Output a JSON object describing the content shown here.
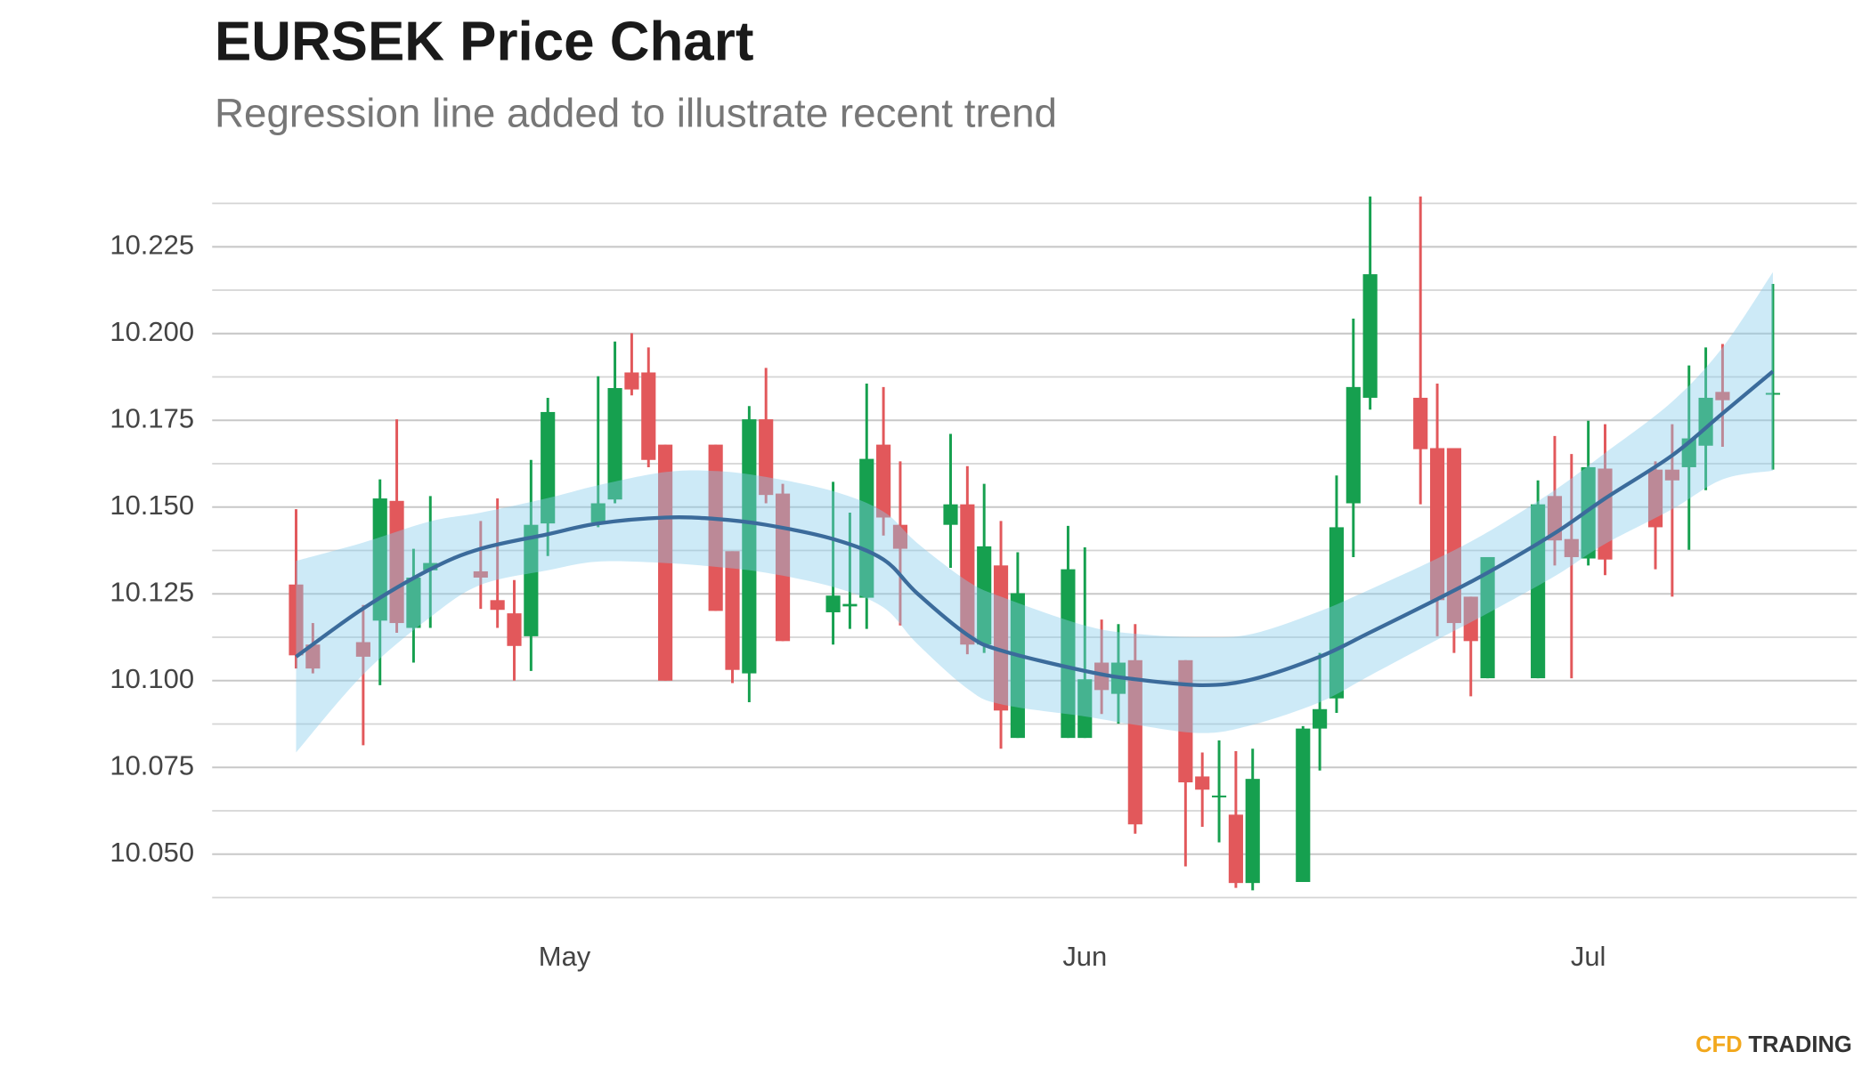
{
  "chart_data": {
    "type": "candlestick",
    "title": "EURSEK Price Chart",
    "subtitle": "Regression line added to illustrate recent trend",
    "logo": {
      "part1": "CFD",
      "part2": "TRADING"
    },
    "xlim": [
      -21,
      77
    ],
    "xticks": [
      {
        "value": 0,
        "label": "May"
      },
      {
        "value": 31,
        "label": "Jun"
      },
      {
        "value": 61,
        "label": "Jul"
      }
    ],
    "ylim": [
      10.0375,
      10.2425
    ],
    "yticks": [
      {
        "value": 10.05,
        "label": "10.050"
      },
      10.075,
      {
        "value": 10.1,
        "label": "10.100"
      },
      10.125,
      {
        "value": 10.15,
        "label": "10.150"
      },
      10.175,
      {
        "value": 10.2,
        "label": "10.200"
      },
      10.225
    ],
    "yminor": [
      10.0375,
      10.0625,
      10.0875,
      10.1125,
      10.1375,
      10.1625,
      10.1875,
      10.2125,
      10.2375
    ],
    "grid": true,
    "up_color": "#16a04f",
    "down_color": "#e2585b",
    "x": [
      -16,
      -15,
      -12,
      -11,
      -10,
      -9,
      -8,
      -5,
      -4,
      -3,
      -2,
      -1,
      2,
      3,
      4,
      5,
      6,
      9,
      10,
      11,
      12,
      13,
      16,
      17,
      18,
      19,
      20,
      23,
      24,
      25,
      26,
      27,
      30,
      31,
      32,
      33,
      34,
      37,
      38,
      39,
      40,
      41,
      44,
      45,
      46,
      47,
      48,
      51,
      52,
      53,
      54,
      55,
      58,
      59,
      60,
      61,
      62,
      65,
      66,
      67,
      68,
      69,
      72
    ],
    "open": [
      10.1277,
      10.1104,
      10.1111,
      10.1173,
      10.1518,
      10.1152,
      10.1318,
      10.1315,
      10.1232,
      10.1194,
      10.1128,
      10.1453,
      10.1456,
      10.1522,
      10.1888,
      10.1888,
      10.168,
      10.168,
      10.1373,
      10.1021,
      10.1753,
      10.1539,
      10.1197,
      10.1214,
      10.1239,
      10.168,
      10.1449,
      10.1449,
      10.1508,
      10.1104,
      10.1332,
      10.0835,
      10.0835,
      10.0835,
      10.1052,
      10.0962,
      10.1059,
      10.1059,
      10.0724,
      10.0666,
      10.0614,
      10.0417,
      10.042,
      10.0862,
      10.0949,
      10.1511,
      10.1815,
      10.1815,
      10.167,
      10.167,
      10.1242,
      10.1007,
      10.1007,
      10.1532,
      10.1408,
      10.1352,
      10.1611,
      10.1608,
      10.1608,
      10.1615,
      10.1677,
      10.1832,
      10.1829
    ],
    "high": [
      10.1494,
      10.1166,
      10.1218,
      10.158,
      10.1753,
      10.138,
      10.1532,
      10.146,
      10.1525,
      10.129,
      10.1636,
      10.1815,
      10.1877,
      10.1977,
      10.2001,
      10.196,
      10.168,
      10.168,
      10.1373,
      10.1791,
      10.1901,
      10.1567,
      10.1573,
      10.1484,
      10.1856,
      10.1846,
      10.1632,
      10.1711,
      10.1618,
      10.1567,
      10.146,
      10.137,
      10.1446,
      10.1384,
      10.1176,
      10.1163,
      10.1163,
      10.1059,
      10.0793,
      10.0828,
      10.0797,
      10.0804,
      10.0869,
      10.108,
      10.1591,
      10.2043,
      10.2395,
      10.2395,
      10.1856,
      10.167,
      10.1242,
      10.1356,
      10.1577,
      10.1705,
      10.1653,
      10.1749,
      10.1739,
      10.1632,
      10.1739,
      10.1908,
      10.196,
      10.197,
      10.2143
    ],
    "low": [
      10.1035,
      10.1021,
      10.0814,
      10.0987,
      10.1138,
      10.1052,
      10.1152,
      10.1207,
      10.1152,
      10.1,
      10.1028,
      10.1359,
      10.1442,
      10.1511,
      10.1822,
      10.1615,
      10.1,
      10.1201,
      10.0993,
      10.0938,
      10.1511,
      10.1114,
      10.1104,
      10.1149,
      10.1149,
      10.1418,
      10.1159,
      10.1325,
      10.1076,
      10.108,
      10.0804,
      10.0835,
      10.0835,
      10.0835,
      10.0904,
      10.0876,
      10.0559,
      10.0465,
      10.0579,
      10.0534,
      10.0403,
      10.0396,
      10.042,
      10.0741,
      10.0907,
      10.1356,
      10.1781,
      10.1508,
      10.1128,
      10.108,
      10.0955,
      10.1007,
      10.1007,
      10.1332,
      10.1007,
      10.1332,
      10.1304,
      10.1321,
      10.1242,
      10.1377,
      10.1549,
      10.1674,
      10.1608
    ],
    "close": [
      10.1073,
      10.1035,
      10.1069,
      10.1525,
      10.1166,
      10.1297,
      10.1339,
      10.1297,
      10.1204,
      10.11,
      10.1449,
      10.1774,
      10.1511,
      10.1843,
      10.1839,
      10.1636,
      10.1,
      10.1201,
      10.1031,
      10.1753,
      10.1535,
      10.1114,
      10.1245,
      10.1221,
      10.1639,
      10.147,
      10.138,
      10.1508,
      10.1104,
      10.1387,
      10.0914,
      10.1252,
      10.1321,
      10.1004,
      10.0973,
      10.1052,
      10.0586,
      10.0707,
      10.0686,
      10.0669,
      10.0417,
      10.0717,
      10.0862,
      10.0918,
      10.1442,
      10.1846,
      10.2171,
      10.1667,
      10.1232,
      10.1166,
      10.1114,
      10.1356,
      10.1508,
      10.1404,
      10.1356,
      10.1615,
      10.1349,
      10.1442,
      10.1577,
      10.1698,
      10.1815,
      10.1808,
      10.1829
    ],
    "regression": {
      "color": "#3b6b9b",
      "band_color": "#87ceeb",
      "x": [
        -16,
        -12,
        -8,
        -5,
        -1,
        2,
        6,
        9,
        12,
        16,
        19,
        21,
        24,
        26,
        31,
        34,
        38,
        41,
        45,
        48,
        52,
        55,
        59,
        62,
        66,
        69,
        72
      ],
      "values": [
        10.1069,
        10.1208,
        10.1321,
        10.138,
        10.1422,
        10.1453,
        10.147,
        10.1466,
        10.1449,
        10.1408,
        10.1349,
        10.1252,
        10.1132,
        10.1087,
        10.1028,
        10.1004,
        10.0987,
        10.1004,
        10.1069,
        10.1139,
        10.1235,
        10.1311,
        10.1425,
        10.1525,
        10.1649,
        10.177,
        10.1891
      ],
      "lower": [
        10.0793,
        10.1018,
        10.1183,
        10.1276,
        10.1318,
        10.1343,
        10.1339,
        10.1328,
        10.1311,
        10.127,
        10.1211,
        10.1107,
        10.0977,
        10.0932,
        10.0897,
        10.0873,
        10.0849,
        10.0873,
        10.0938,
        10.1015,
        10.1118,
        10.1194,
        10.1301,
        10.1394,
        10.1494,
        10.158,
        10.1605
      ],
      "upper": [
        10.1345,
        10.1398,
        10.1459,
        10.1484,
        10.1526,
        10.1563,
        10.1601,
        10.1604,
        10.1587,
        10.1546,
        10.1487,
        10.1397,
        10.1287,
        10.1242,
        10.1159,
        10.1135,
        10.1125,
        10.1135,
        10.12,
        10.1263,
        10.1352,
        10.1428,
        10.1549,
        10.1656,
        10.1804,
        10.196,
        10.2177
      ]
    }
  }
}
